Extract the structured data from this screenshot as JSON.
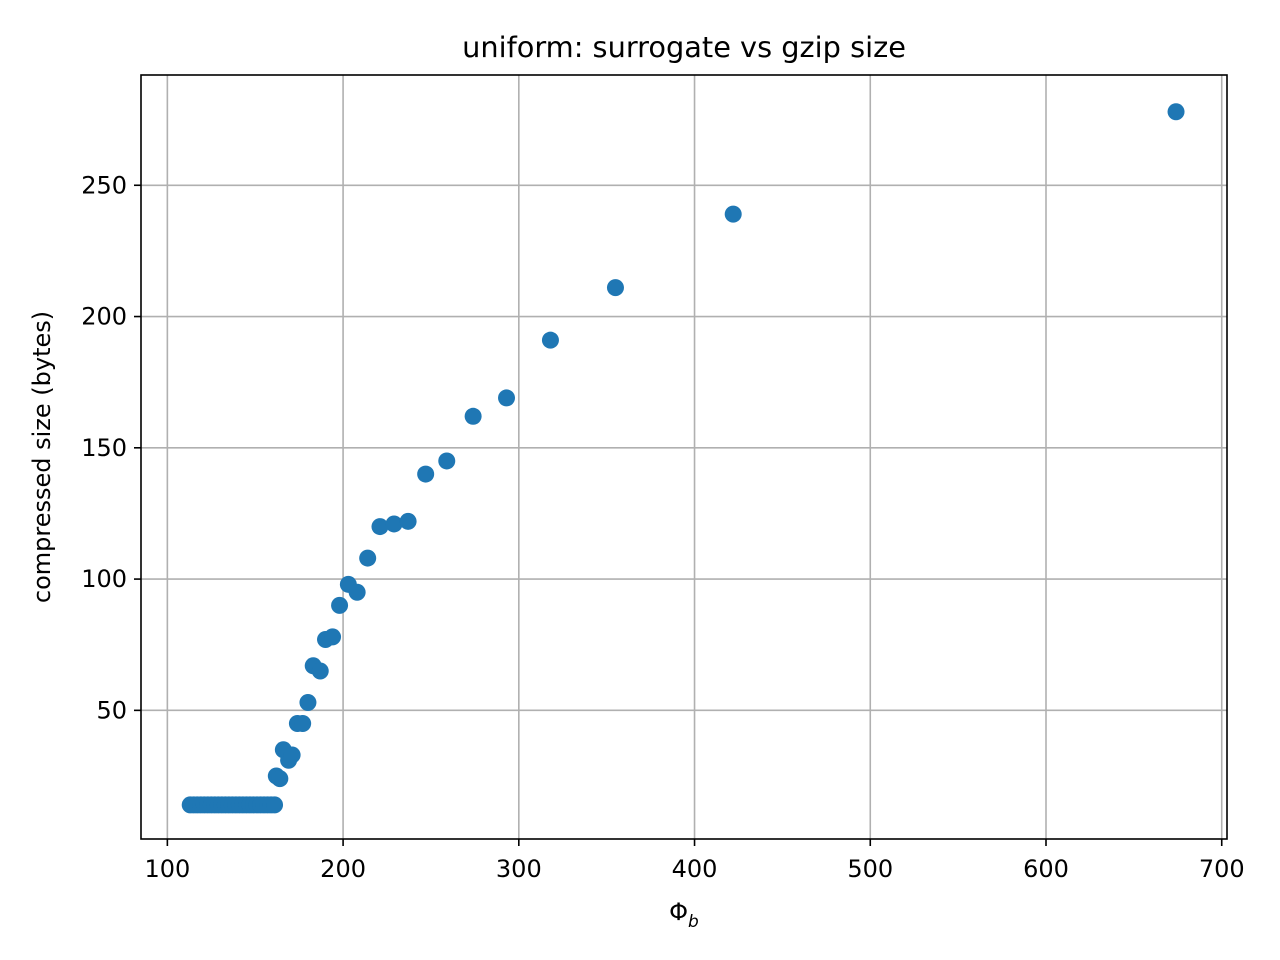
{
  "chart_data": {
    "type": "scatter",
    "title": "uniform: surrogate vs gzip size",
    "xlabel_main": "Φ",
    "xlabel_sub": "b",
    "ylabel": "compressed size (bytes)",
    "xlim": [
      85,
      703
    ],
    "ylim": [
      1,
      292
    ],
    "x_ticks": [
      100,
      200,
      300,
      400,
      500,
      600,
      700
    ],
    "y_ticks": [
      50,
      100,
      150,
      200,
      250
    ],
    "grid": true,
    "marker_color": "#1f77b4",
    "series": [
      {
        "points": [
          [
            113,
            14
          ],
          [
            115,
            14
          ],
          [
            117,
            14
          ],
          [
            119,
            14
          ],
          [
            121,
            14
          ],
          [
            123,
            14
          ],
          [
            125,
            14
          ],
          [
            127,
            14
          ],
          [
            129,
            14
          ],
          [
            131,
            14
          ],
          [
            133,
            14
          ],
          [
            135,
            14
          ],
          [
            137,
            14
          ],
          [
            139,
            14
          ],
          [
            141,
            14
          ],
          [
            143,
            14
          ],
          [
            145,
            14
          ],
          [
            147,
            14
          ],
          [
            149,
            14
          ],
          [
            151,
            14
          ],
          [
            153,
            14
          ],
          [
            155,
            14
          ],
          [
            157,
            14
          ],
          [
            159,
            14
          ],
          [
            161,
            14
          ],
          [
            162,
            25
          ],
          [
            164,
            24
          ],
          [
            166,
            35
          ],
          [
            169,
            31
          ],
          [
            171,
            33
          ],
          [
            174,
            45
          ],
          [
            177,
            45
          ],
          [
            180,
            53
          ],
          [
            183,
            67
          ],
          [
            187,
            65
          ],
          [
            190,
            77
          ],
          [
            194,
            78
          ],
          [
            198,
            90
          ],
          [
            203,
            98
          ],
          [
            208,
            95
          ],
          [
            214,
            108
          ],
          [
            221,
            120
          ],
          [
            229,
            121
          ],
          [
            237,
            122
          ],
          [
            247,
            140
          ],
          [
            259,
            145
          ],
          [
            274,
            162
          ],
          [
            293,
            169
          ],
          [
            318,
            191
          ],
          [
            355,
            211
          ],
          [
            422,
            239
          ],
          [
            674,
            278
          ]
        ]
      }
    ]
  }
}
